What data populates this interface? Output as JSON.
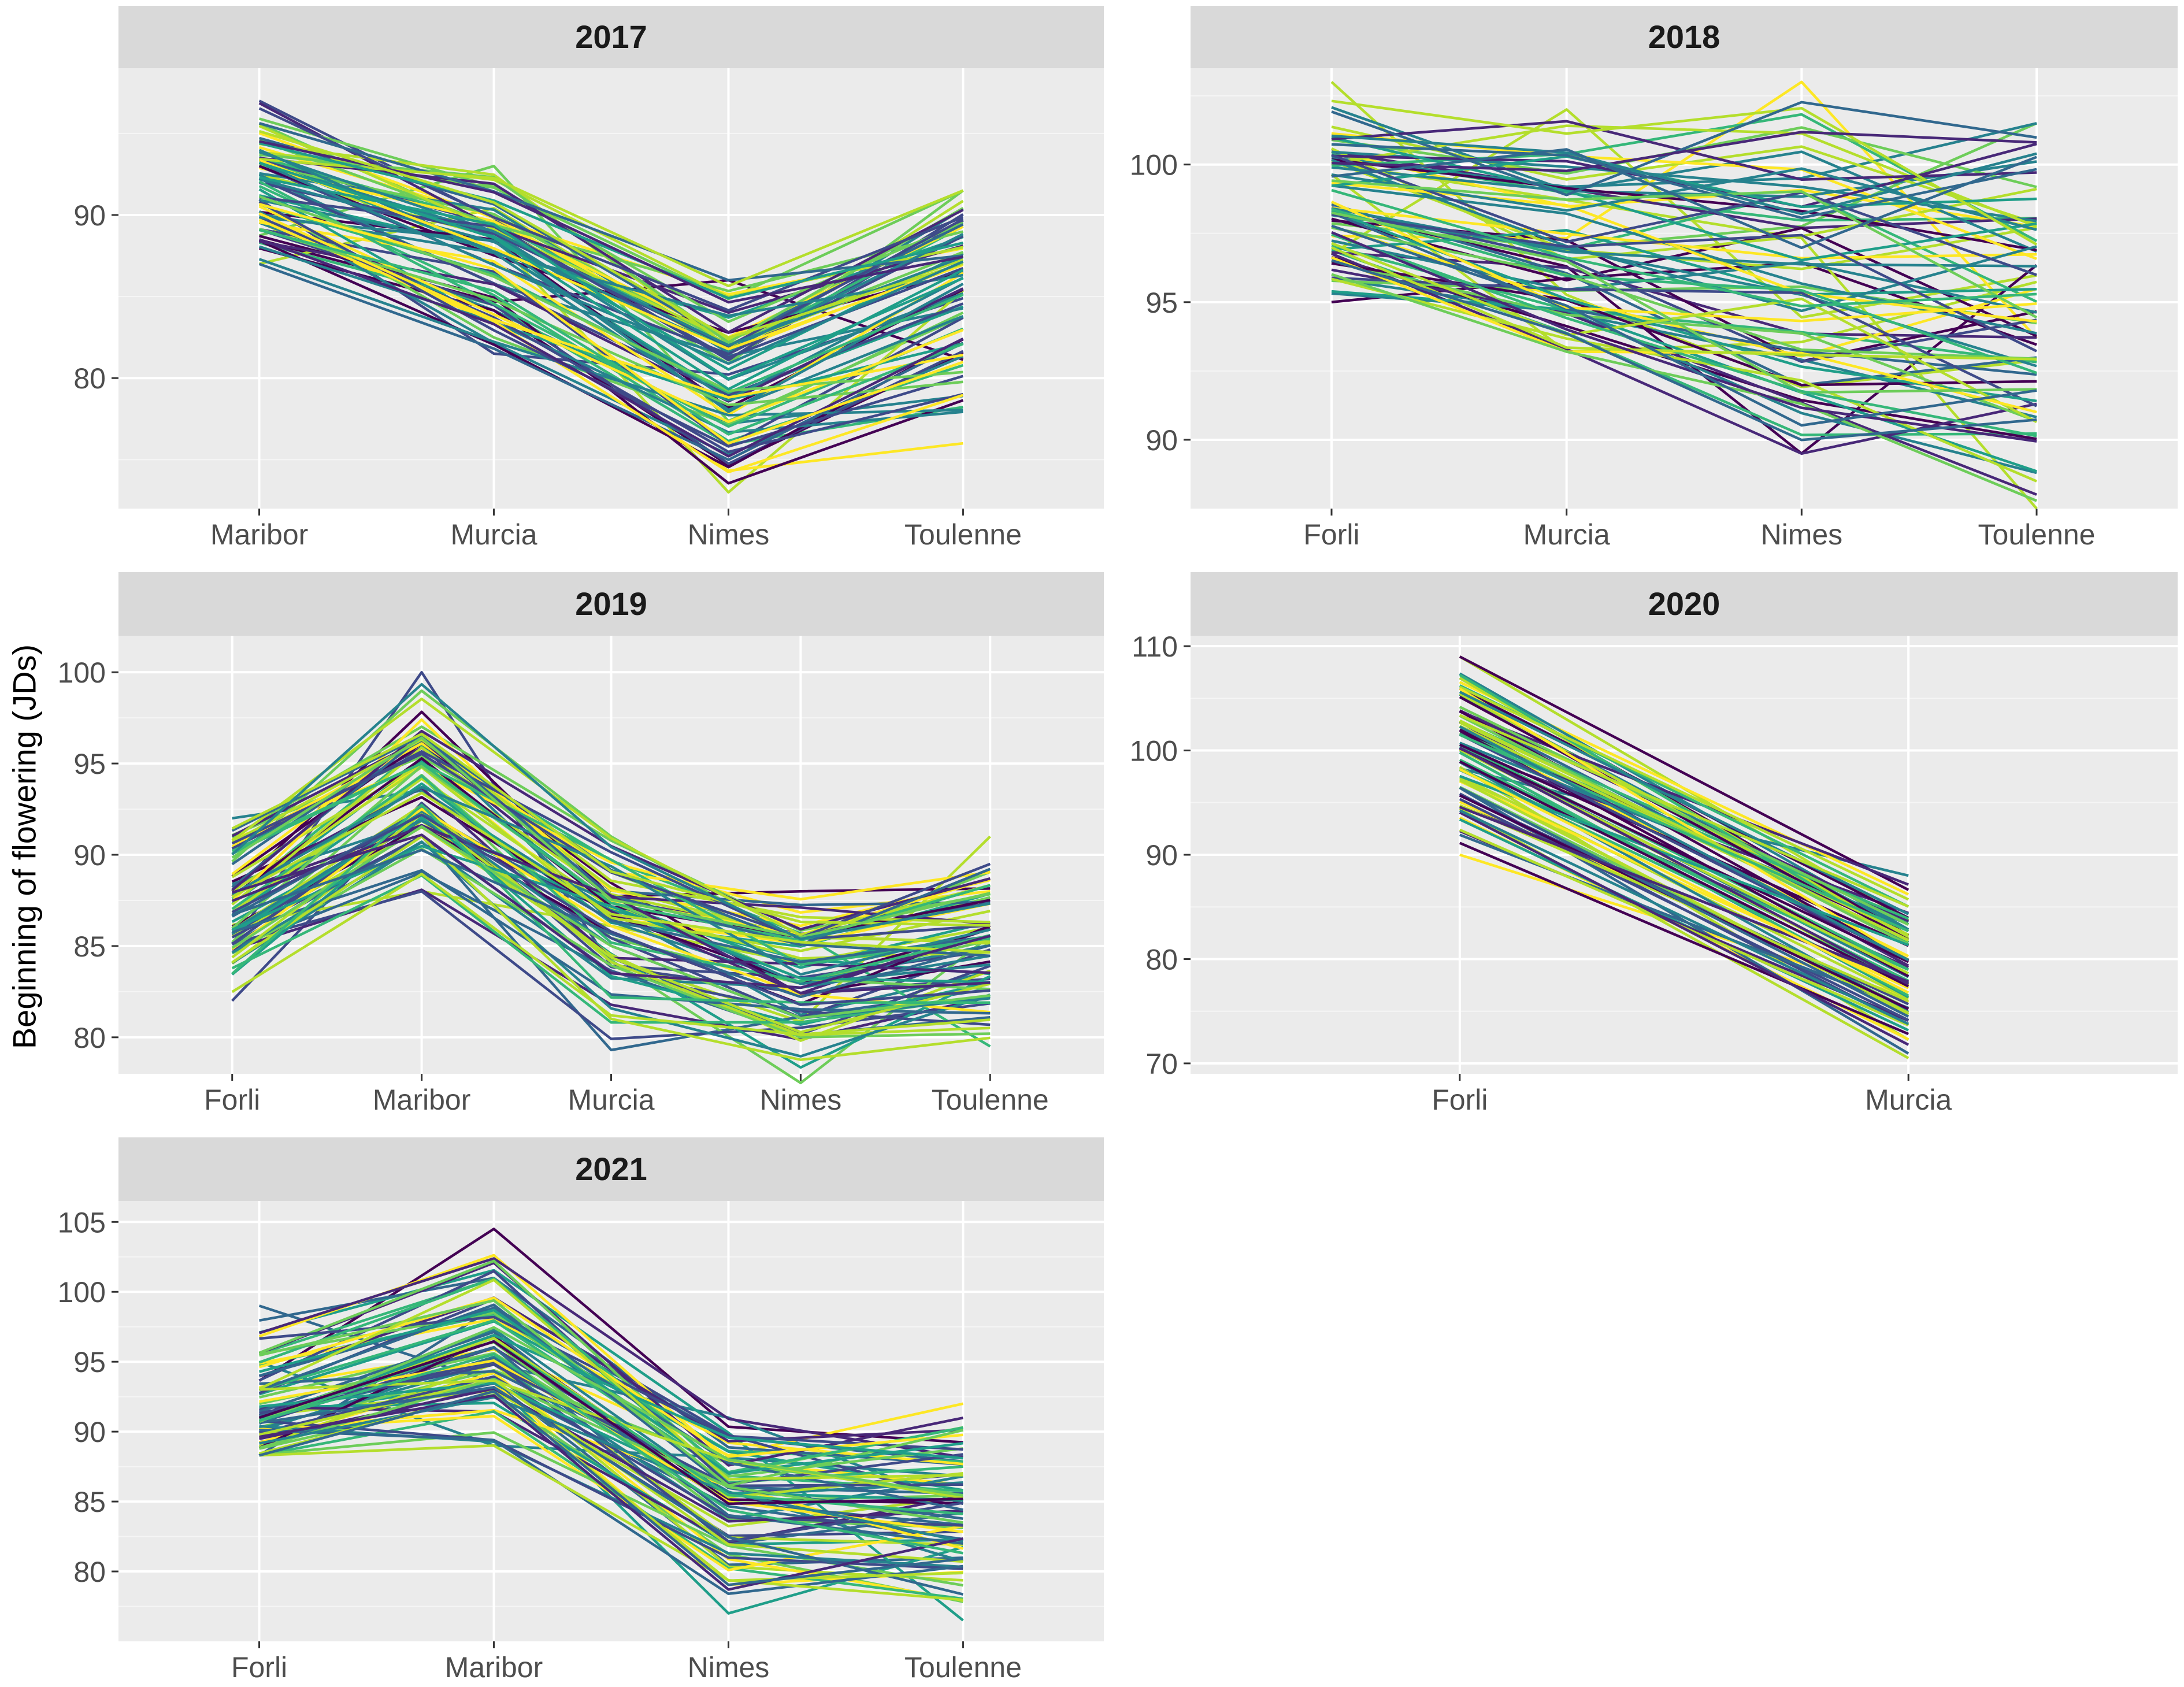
{
  "ylabel": "Beginning of flowering (JDs)",
  "colors": {
    "panel_bg": "#EBEBEB",
    "strip_bg": "#D9D9D9",
    "grid": "#FFFFFF",
    "palette": [
      "#440154",
      "#482878",
      "#3E4A89",
      "#31688E",
      "#26828E",
      "#1F9E89",
      "#35B779",
      "#6DCD59",
      "#B4DE2C",
      "#FDE725"
    ]
  },
  "chart_data": [
    {
      "type": "line",
      "title": "2017",
      "categories": [
        "Maribor",
        "Murcia",
        "Nimes",
        "Toulenne"
      ],
      "yticks": [
        80,
        90
      ],
      "ylim": [
        72,
        99
      ],
      "series_count": 80,
      "series_min": [
        87,
        81.5,
        73,
        76
      ],
      "series_max": [
        97,
        93,
        86,
        91.5
      ],
      "series_typical": [
        91.5,
        87,
        80,
        86.5
      ]
    },
    {
      "type": "line",
      "title": "2018",
      "categories": [
        "Forli",
        "Murcia",
        "Nimes",
        "Toulenne"
      ],
      "yticks": [
        90,
        95,
        100
      ],
      "ylim": [
        87.5,
        103.5
      ],
      "series_count": 80,
      "series_min": [
        95,
        93.2,
        89.5,
        87.5
      ],
      "series_max": [
        103,
        102,
        103,
        101.5
      ],
      "series_typical": [
        98,
        96.5,
        95,
        95
      ]
    },
    {
      "type": "line",
      "title": "2019",
      "categories": [
        "Forli",
        "Maribor",
        "Murcia",
        "Nimes",
        "Toulenne"
      ],
      "yticks": [
        80,
        85,
        90,
        95,
        100
      ],
      "ylim": [
        78,
        102
      ],
      "series_count": 80,
      "series_min": [
        82,
        88,
        79.3,
        77.5,
        79.5
      ],
      "series_max": [
        92,
        100,
        91,
        88,
        91
      ],
      "series_typical": [
        87,
        93,
        86.5,
        83,
        84.5
      ]
    },
    {
      "type": "line",
      "title": "2020",
      "categories": [
        "Forli",
        "Murcia"
      ],
      "yticks": [
        70,
        80,
        90,
        100,
        110
      ],
      "ylim": [
        69,
        111
      ],
      "series_count": 80,
      "series_min": [
        90,
        70.5
      ],
      "series_max": [
        109,
        88
      ],
      "series_typical": [
        100,
        78
      ]
    },
    {
      "type": "line",
      "title": "2021",
      "categories": [
        "Forli",
        "Maribor",
        "Nimes",
        "Toulenne"
      ],
      "yticks": [
        80,
        85,
        90,
        95,
        100,
        105
      ],
      "ylim": [
        75,
        106.5
      ],
      "series_count": 80,
      "series_min": [
        88.3,
        89,
        77,
        76.5
      ],
      "series_max": [
        99,
        104.5,
        91,
        92
      ],
      "series_typical": [
        91,
        95.5,
        86.5,
        85
      ]
    }
  ]
}
